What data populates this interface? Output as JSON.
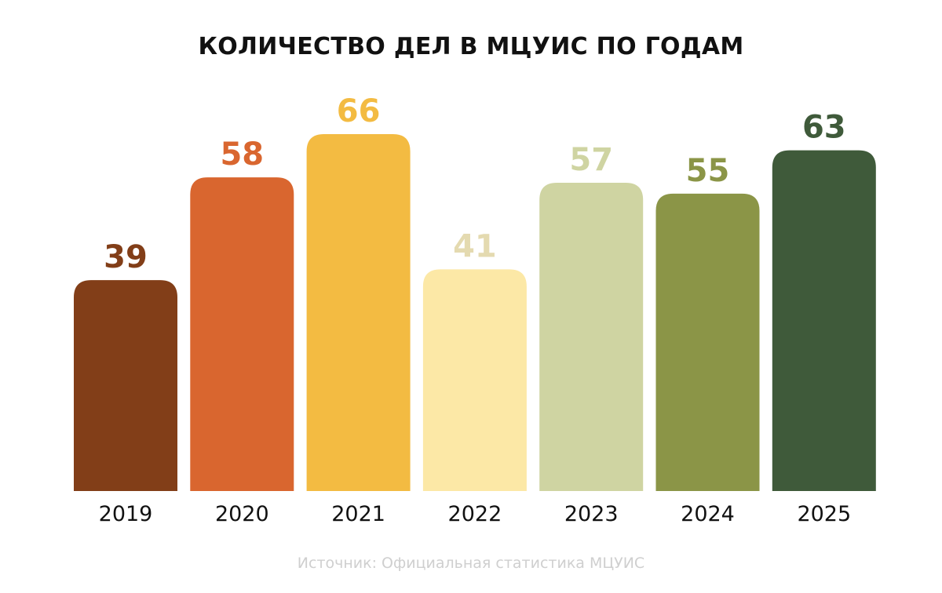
{
  "chart_data": {
    "type": "bar",
    "title": "КОЛИЧЕСТВО ДЕЛ В МЦУИС ПО ГОДАМ",
    "categories": [
      "2019",
      "2020",
      "2021",
      "2022",
      "2023",
      "2024",
      "2025"
    ],
    "values": [
      39,
      58,
      66,
      41,
      57,
      55,
      63
    ],
    "colors": [
      "#823e18",
      "#d9662f",
      "#f3bb42",
      "#fce8a6",
      "#cfd4a2",
      "#8b9547",
      "#3f5a3a"
    ],
    "value_label_colors": [
      "#823e18",
      "#d9662f",
      "#f3bb42",
      "#e4dab0",
      "#cfd4a2",
      "#8b9547",
      "#3f5a3a"
    ],
    "xlabel": "",
    "ylabel": "",
    "ylim": [
      0,
      66
    ],
    "grid": false,
    "data_labels": true
  },
  "source": "Источник: Официальная статистика МЦУИС"
}
